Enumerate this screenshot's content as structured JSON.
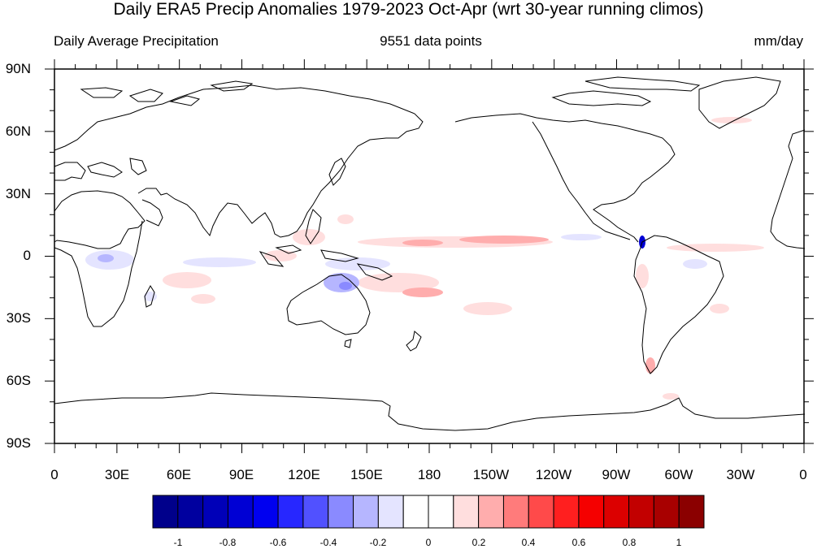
{
  "title": "Daily ERA5 Precip Anomalies 1979-2023 Oct-Apr (wrt 30-year running climos)",
  "subtitle_left": "Daily Average Precipitation",
  "subtitle_center": "9551 data points",
  "subtitle_right": "mm/day",
  "lat_labels": [
    "90N",
    "60N",
    "30N",
    "0",
    "30S",
    "60S",
    "90S"
  ],
  "lon_labels": [
    "0",
    "30E",
    "60E",
    "90E",
    "120E",
    "150E",
    "180",
    "150W",
    "120W",
    "90W",
    "60W",
    "30W",
    "0"
  ],
  "colorbar": {
    "colors": [
      "#00008b",
      "#00009f",
      "#0000b8",
      "#0000d4",
      "#0000f0",
      "#2727ff",
      "#5151ff",
      "#8a8aff",
      "#b6b6ff",
      "#e4e4ff",
      "#ffffff",
      "#ffffff",
      "#ffdede",
      "#ffadad",
      "#ff7b7b",
      "#ff4a4a",
      "#ff1f1f",
      "#f50000",
      "#dc0000",
      "#c20000",
      "#a80000",
      "#8b0000"
    ],
    "labels": [
      "-1",
      "-0.8",
      "-0.6",
      "-0.4",
      "-0.2",
      "0",
      "0.2",
      "0.4",
      "0.6",
      "0.8",
      "1"
    ]
  },
  "map": {
    "projection": "cylindrical-equidistant",
    "lon_range": [
      0,
      360
    ],
    "lat_range": [
      -90,
      90
    ],
    "coastlines": true,
    "background": "#ffffff"
  }
}
